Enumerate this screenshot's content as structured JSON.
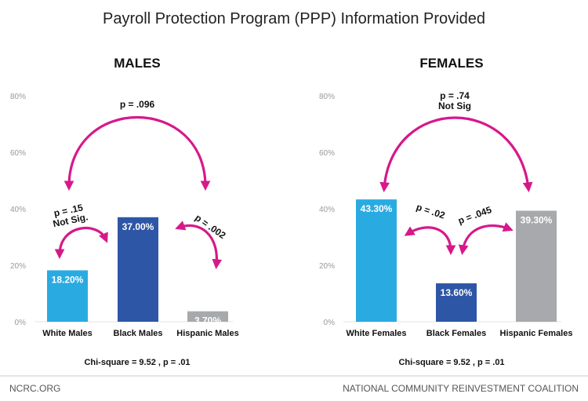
{
  "title": "Payroll Protection Program (PPP) Information Provided",
  "footer": {
    "left": "NCRC.ORG",
    "right": "NATIONAL COMMUNITY REINVESTMENT COALITION"
  },
  "colors": {
    "white_group": "#29abe2",
    "black_group": "#2e56a6",
    "hispanic_group": "#a7a9ac",
    "arrow": "#d6198a"
  },
  "chart_data": [
    {
      "type": "bar",
      "title": "MALES",
      "categories": [
        "White Males",
        "Black Males",
        "Hispanic Males"
      ],
      "values": [
        18.2,
        37.0,
        3.7
      ],
      "value_labels": [
        "18.20%",
        "37.00%",
        "3.70%"
      ],
      "ylim": [
        0,
        80
      ],
      "yticks": [
        "0%",
        "20%",
        "40%",
        "60%",
        "80%"
      ],
      "grid": false,
      "annotations": [
        {
          "text": "p = .096",
          "from": 0,
          "to": 2
        },
        {
          "text": "p = .15\nNot Sig.",
          "from": 0,
          "to": 1
        },
        {
          "text": "p = .002",
          "from": 1,
          "to": 2
        }
      ],
      "footnote": "Chi-square = 9.52 , p = .01"
    },
    {
      "type": "bar",
      "title": "FEMALES",
      "categories": [
        "White Females",
        "Black Females",
        "Hispanic Females"
      ],
      "values": [
        43.3,
        13.6,
        39.3
      ],
      "value_labels": [
        "43.30%",
        "13.60%",
        "39.30%"
      ],
      "ylim": [
        0,
        80
      ],
      "yticks": [
        "0%",
        "20%",
        "40%",
        "60%",
        "80%"
      ],
      "grid": false,
      "annotations": [
        {
          "text": "p = .74\nNot Sig",
          "from": 0,
          "to": 2
        },
        {
          "text": "p = .02",
          "from": 0,
          "to": 1
        },
        {
          "text": "p = .045",
          "from": 1,
          "to": 2
        }
      ],
      "footnote": "Chi-square = 9.52 , p = .01"
    }
  ]
}
